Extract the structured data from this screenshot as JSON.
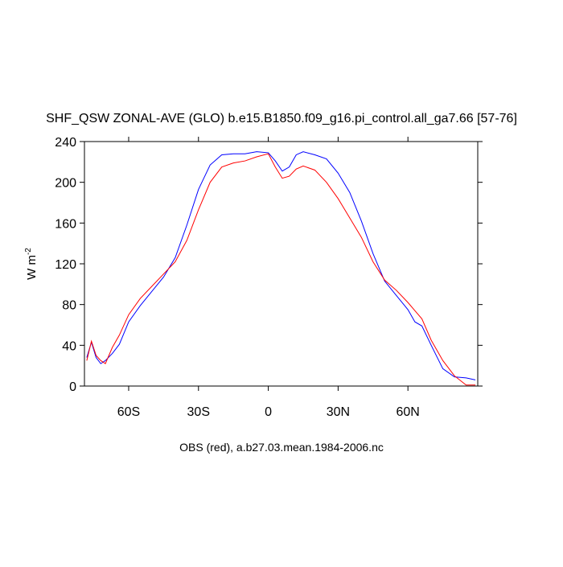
{
  "chart_data": {
    "type": "line",
    "title": "SHF_QSW ZONAL-AVE (GLO) b.e15.B1850.f09_g16.pi_control.all_ga7.66 [57-76]",
    "x_label": "OBS (red), a.b27.03.mean.1984-2006.nc",
    "y_label": "W m",
    "y_label_superscript": "-2",
    "x": [
      -78,
      -76,
      -74,
      -72,
      -70,
      -67,
      -64,
      -60,
      -55,
      -50,
      -45,
      -40,
      -35,
      -30,
      -25,
      -20,
      -15,
      -10,
      -5,
      0,
      3,
      6,
      9,
      12,
      15,
      20,
      25,
      30,
      35,
      40,
      45,
      50,
      55,
      60,
      63,
      66,
      70,
      75,
      80,
      85,
      89
    ],
    "series": [
      {
        "color": "#0000ff",
        "values": [
          28,
          43,
          28,
          22,
          25,
          32,
          41,
          63,
          79,
          93,
          107,
          126,
          158,
          193,
          217,
          227,
          228,
          228,
          230,
          229,
          221,
          211,
          215,
          227,
          230,
          227,
          223,
          209,
          190,
          162,
          130,
          103,
          89,
          75,
          63,
          59,
          40,
          17,
          9,
          8,
          6
        ]
      },
      {
        "color": "#ff0000",
        "values": [
          25,
          44,
          30,
          25,
          22,
          38,
          50,
          70,
          86,
          98,
          110,
          122,
          143,
          173,
          200,
          215,
          219,
          221,
          225,
          228,
          215,
          204,
          206,
          213,
          216,
          212,
          200,
          184,
          165,
          146,
          122,
          104,
          94,
          82,
          74,
          66,
          45,
          25,
          10,
          1,
          1
        ]
      }
    ],
    "xlim": [
      -79,
      90
    ],
    "xticks": [
      {
        "value": -60,
        "label": "60S"
      },
      {
        "value": -30,
        "label": "30S"
      },
      0,
      {
        "value": 30,
        "label": "30N"
      },
      {
        "value": 60,
        "label": "60N"
      }
    ],
    "ylim": [
      0,
      240
    ],
    "yticks": [
      0,
      40,
      80,
      120,
      160,
      200,
      240
    ]
  }
}
